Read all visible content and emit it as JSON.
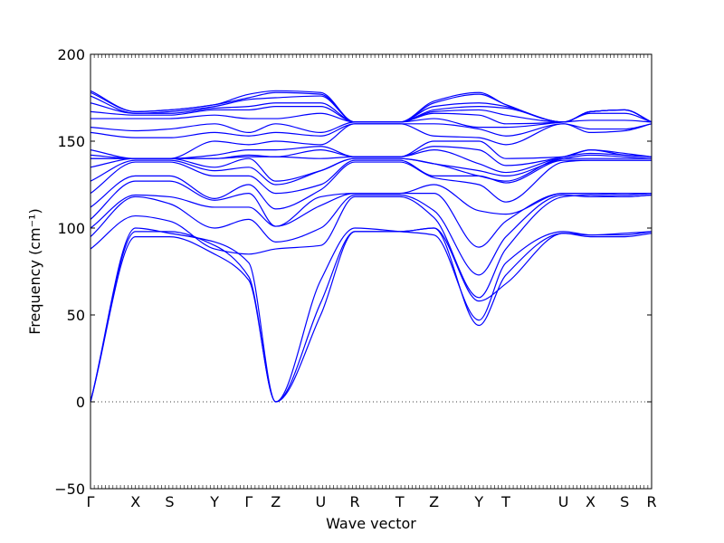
{
  "chart_data": {
    "type": "line",
    "title": "",
    "xlabel": "Wave vector",
    "ylabel": "Frequency (cm⁻¹)",
    "ylim": [
      -50,
      200
    ],
    "yticks": [
      -50,
      0,
      50,
      100,
      150,
      200
    ],
    "zero_line": true,
    "grid": false,
    "legend": "none",
    "line_color": "#0000ff",
    "x_path": [
      {
        "label": "Γ",
        "x": 0.0
      },
      {
        "label": "X",
        "x": 0.5
      },
      {
        "label": "S",
        "x": 0.88
      },
      {
        "label": "Y",
        "x": 1.38
      },
      {
        "label": "Γ",
        "x": 1.76
      },
      {
        "label": "Z",
        "x": 2.06
      },
      {
        "label": "U",
        "x": 2.56
      },
      {
        "label": "R",
        "x": 2.94
      },
      {
        "label": "T",
        "x": 3.44
      },
      {
        "label": "Z",
        "x": 3.82
      },
      {
        "label": "Y",
        "x": 4.32
      },
      {
        "label": "T",
        "x": 4.62
      },
      {
        "label": "U",
        "x": 5.26
      },
      {
        "label": "X",
        "x": 5.56
      },
      {
        "label": "S",
        "x": 5.94
      },
      {
        "label": "R",
        "x": 6.24
      }
    ],
    "xlim": [
      0,
      6.24
    ],
    "series": [
      {
        "values": [
          0,
          95,
          95,
          85,
          70,
          0,
          50,
          98,
          98,
          100,
          58,
          68,
          97,
          95,
          95,
          97
        ]
      },
      {
        "values": [
          0,
          98,
          98,
          90,
          72,
          0,
          57,
          98,
          98,
          100,
          44,
          73,
          97,
          96,
          96,
          98
        ]
      },
      {
        "values": [
          0,
          100,
          97,
          92,
          80,
          0,
          70,
          100,
          98,
          96,
          47,
          80,
          98,
          96,
          97,
          98
        ]
      },
      {
        "values": [
          88,
          107,
          104,
          88,
          85,
          88,
          90,
          118,
          118,
          106,
          60,
          88,
          118,
          119,
          118,
          119
        ]
      },
      {
        "values": [
          95,
          118,
          114,
          100,
          105,
          92,
          100,
          119,
          119,
          110,
          73,
          95,
          119,
          118,
          118,
          119
        ]
      },
      {
        "values": [
          100,
          119,
          118,
          112,
          112,
          101,
          113,
          120,
          120,
          120,
          89,
          104,
          120,
          120,
          119,
          120
        ]
      },
      {
        "values": [
          105,
          127,
          127,
          116,
          120,
          101,
          118,
          120,
          120,
          125,
          110,
          108,
          120,
          120,
          120,
          120
        ]
      },
      {
        "values": [
          112,
          130,
          130,
          117,
          125,
          111,
          122,
          138,
          138,
          129,
          125,
          115,
          138,
          139,
          139,
          139
        ]
      },
      {
        "values": [
          120,
          138,
          138,
          130,
          130,
          120,
          125,
          139,
          139,
          130,
          130,
          126,
          139,
          139,
          139,
          139
        ]
      },
      {
        "values": [
          127,
          139,
          139,
          133,
          135,
          125,
          133,
          140,
          140,
          137,
          130,
          127,
          140,
          140,
          140,
          140
        ]
      },
      {
        "values": [
          135,
          140,
          140,
          135,
          140,
          127,
          133,
          140,
          140,
          137,
          133,
          130,
          140,
          142,
          141,
          140
        ]
      },
      {
        "values": [
          140,
          140,
          140,
          140,
          141,
          141,
          140,
          141,
          141,
          145,
          137,
          132,
          141,
          143,
          142,
          141
        ]
      },
      {
        "values": [
          140,
          140,
          140,
          140,
          142,
          141,
          145,
          141,
          141,
          147,
          145,
          136,
          141,
          145,
          142,
          141
        ]
      },
      {
        "values": [
          142,
          140,
          140,
          142,
          145,
          145,
          147,
          141,
          141,
          150,
          150,
          140,
          141,
          145,
          143,
          141
        ]
      },
      {
        "values": [
          145,
          140,
          140,
          150,
          148,
          150,
          148,
          160,
          160,
          153,
          152,
          148,
          160,
          155,
          156,
          160
        ]
      },
      {
        "values": [
          155,
          152,
          152,
          155,
          153,
          155,
          153,
          160,
          160,
          160,
          157,
          153,
          160,
          157,
          157,
          160
        ]
      },
      {
        "values": [
          158,
          156,
          157,
          160,
          155,
          160,
          155,
          161,
          161,
          163,
          158,
          158,
          161,
          162,
          162,
          161
        ]
      },
      {
        "values": [
          163,
          163,
          163,
          165,
          163,
          163,
          166,
          161,
          161,
          166,
          165,
          160,
          161,
          166,
          166,
          161
        ]
      },
      {
        "values": [
          167,
          165,
          165,
          168,
          168,
          170,
          170,
          161,
          161,
          167,
          168,
          165,
          161,
          167,
          168,
          161
        ]
      },
      {
        "values": [
          172,
          166,
          166,
          169,
          170,
          172,
          172,
          161,
          161,
          168,
          170,
          169,
          161,
          167,
          168,
          161
        ]
      },
      {
        "values": [
          176,
          166,
          167,
          170,
          174,
          175,
          176,
          161,
          161,
          170,
          172,
          170,
          161,
          167,
          168,
          161
        ]
      },
      {
        "values": [
          178,
          167,
          168,
          171,
          175,
          178,
          177,
          161,
          161,
          172,
          177,
          171,
          161,
          167,
          168,
          161
        ]
      },
      {
        "values": [
          179,
          167,
          168,
          171,
          177,
          179,
          178,
          161,
          161,
          173,
          178,
          171,
          161,
          167,
          168,
          161
        ]
      }
    ]
  }
}
